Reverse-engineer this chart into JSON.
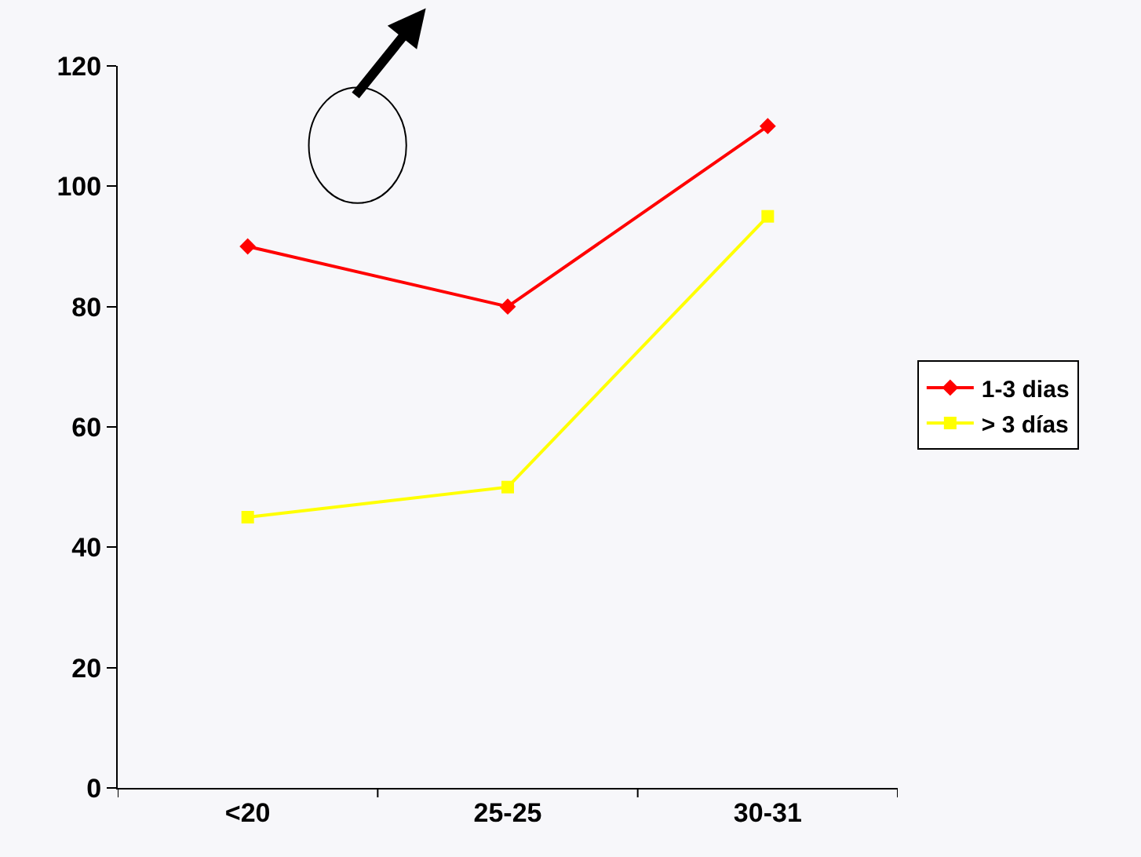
{
  "chart_data": {
    "type": "line",
    "categories": [
      "<20",
      "25-25",
      "30-31"
    ],
    "series": [
      {
        "name": "1-3 dias",
        "color": "#ff0000",
        "marker": "diamond",
        "values": [
          90,
          80,
          110
        ]
      },
      {
        "name": "> 3 días",
        "color": "#ffff00",
        "marker": "square",
        "values": [
          45,
          50,
          95
        ]
      }
    ],
    "ylim": [
      0,
      120
    ],
    "yticks": [
      0,
      20,
      40,
      60,
      80,
      100,
      120
    ],
    "grid": false,
    "legend": "right",
    "line_style": "solid"
  }
}
